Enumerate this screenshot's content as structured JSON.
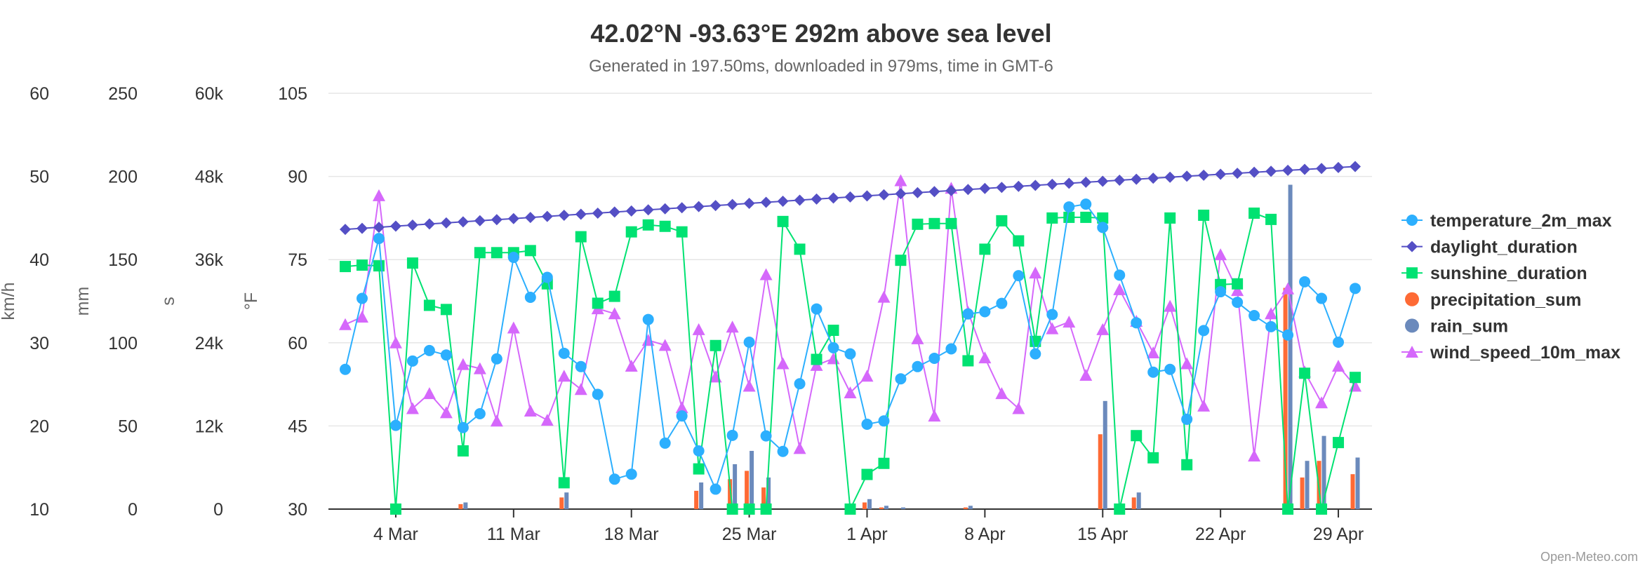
{
  "chart_data": {
    "type": "line",
    "title": "42.02°N -93.63°E 292m above sea level",
    "subtitle": "Generated in 197.50ms, downloaded in 979ms, time in GMT-6",
    "credit": "Open-Meteo.com",
    "x_tick_labels": [
      "4 Mar",
      "11 Mar",
      "18 Mar",
      "25 Mar",
      "1 Apr",
      "8 Apr",
      "15 Apr",
      "22 Apr",
      "29 Apr"
    ],
    "x_tick_dates": [
      "2024-03-04",
      "2024-03-11",
      "2024-03-18",
      "2024-03-25",
      "2024-04-01",
      "2024-04-08",
      "2024-04-15",
      "2024-04-22",
      "2024-04-29"
    ],
    "x_range": [
      "2024-02-29",
      "2024-05-01"
    ],
    "dates": [
      "2024-03-01",
      "2024-03-02",
      "2024-03-03",
      "2024-03-04",
      "2024-03-05",
      "2024-03-06",
      "2024-03-07",
      "2024-03-08",
      "2024-03-09",
      "2024-03-10",
      "2024-03-11",
      "2024-03-12",
      "2024-03-13",
      "2024-03-14",
      "2024-03-15",
      "2024-03-16",
      "2024-03-17",
      "2024-03-18",
      "2024-03-19",
      "2024-03-20",
      "2024-03-21",
      "2024-03-22",
      "2024-03-23",
      "2024-03-24",
      "2024-03-25",
      "2024-03-26",
      "2024-03-27",
      "2024-03-28",
      "2024-03-29",
      "2024-03-30",
      "2024-03-31",
      "2024-04-01",
      "2024-04-02",
      "2024-04-03",
      "2024-04-04",
      "2024-04-05",
      "2024-04-06",
      "2024-04-07",
      "2024-04-08",
      "2024-04-09",
      "2024-04-10",
      "2024-04-11",
      "2024-04-12",
      "2024-04-13",
      "2024-04-14",
      "2024-04-15",
      "2024-04-16",
      "2024-04-17",
      "2024-04-18",
      "2024-04-19",
      "2024-04-20",
      "2024-04-21",
      "2024-04-22",
      "2024-04-23",
      "2024-04-24",
      "2024-04-25",
      "2024-04-26",
      "2024-04-27",
      "2024-04-28",
      "2024-04-29",
      "2024-04-30"
    ],
    "axes": [
      {
        "id": "kmh",
        "title": "km/h",
        "ticks": [
          "10",
          "20",
          "30",
          "40",
          "50",
          "60"
        ],
        "min": 10,
        "max": 60
      },
      {
        "id": "mm",
        "title": "mm",
        "ticks": [
          "0",
          "50",
          "100",
          "150",
          "200",
          "250"
        ],
        "min": 0,
        "max": 250
      },
      {
        "id": "s",
        "title": "s",
        "ticks": [
          "0",
          "12k",
          "24k",
          "36k",
          "48k",
          "60k"
        ],
        "min": 0,
        "max": 60000
      },
      {
        "id": "f",
        "title": "°F",
        "ticks": [
          "30",
          "45",
          "60",
          "75",
          "90",
          "105"
        ],
        "min": 30,
        "max": 105
      }
    ],
    "grid": true,
    "legend_position": "right",
    "series": [
      {
        "name": "temperature_2m_max",
        "axis": "f",
        "type": "line",
        "marker": "circle",
        "color": "#2caffe",
        "values": [
          55.2,
          68.0,
          78.8,
          45.1,
          56.7,
          58.6,
          57.8,
          44.7,
          47.2,
          57.1,
          75.4,
          68.2,
          71.8,
          58.1,
          55.7,
          50.7,
          35.4,
          36.3,
          64.2,
          41.9,
          46.8,
          40.5,
          33.6,
          43.3,
          60.1,
          43.2,
          40.4,
          52.6,
          66.1,
          59.1,
          58.0,
          45.3,
          45.9,
          53.5,
          55.7,
          57.2,
          58.9,
          65.2,
          65.6,
          67.1,
          72.1,
          58.0,
          65.1,
          84.5,
          85.0,
          80.8,
          72.2,
          63.6,
          54.7,
          55.2,
          46.2,
          62.2,
          69.2,
          67.3,
          64.9,
          62.9,
          61.4,
          71.0,
          68.0,
          60.1,
          69.8
        ]
      },
      {
        "name": "daylight_duration",
        "axis": "s",
        "type": "line",
        "marker": "diamond",
        "color": "#544fc5",
        "values": [
          40356,
          40512,
          40668,
          40824,
          40981,
          41137,
          41294,
          41450,
          41607,
          41764,
          41920,
          42077,
          42234,
          42390,
          42547,
          42704,
          42860,
          43017,
          43173,
          43330,
          43486,
          43642,
          43798,
          43954,
          44110,
          44266,
          44421,
          44576,
          44731,
          44886,
          45040,
          45194,
          45348,
          45501,
          45654,
          45806,
          45958,
          46110,
          46261,
          46412,
          46562,
          46712,
          46861,
          47009,
          47157,
          47304,
          47451,
          47597,
          47742,
          47887,
          48031,
          48174,
          48316,
          48458,
          48599,
          48739,
          48878,
          49016,
          49153,
          49290,
          49425
        ]
      },
      {
        "name": "sunshine_duration",
        "axis": "s",
        "type": "line",
        "marker": "square",
        "color": "#00e272",
        "values": [
          35000,
          35200,
          35100,
          0,
          35500,
          29400,
          28800,
          8400,
          37000,
          37000,
          37000,
          37300,
          32500,
          3800,
          39300,
          29700,
          30700,
          40000,
          41000,
          40800,
          40000,
          5800,
          23600,
          0,
          0,
          0,
          41500,
          37500,
          21600,
          25800,
          0,
          5000,
          6600,
          35900,
          41100,
          41200,
          41200,
          21400,
          37500,
          41600,
          38700,
          24200,
          42000,
          42100,
          42100,
          42000,
          0,
          10600,
          7400,
          42000,
          6400,
          42400,
          32400,
          32500,
          42700,
          41800,
          0,
          19600,
          0,
          9600,
          19000
        ]
      },
      {
        "name": "precipitation_sum",
        "axis": "mm",
        "type": "column",
        "color": "#fe6a35",
        "values": [
          0,
          0,
          0,
          0,
          0,
          0,
          0,
          3,
          0,
          0,
          0,
          0,
          0,
          7,
          0,
          0,
          0,
          0,
          0,
          0,
          0,
          11,
          0,
          18,
          23,
          13,
          0,
          0,
          0,
          0,
          0,
          4,
          1,
          0,
          0,
          0,
          0,
          1,
          0,
          0,
          0,
          0,
          0,
          0,
          0,
          45,
          0,
          7,
          0,
          0,
          0,
          0,
          0,
          0,
          0,
          0,
          133,
          19,
          29,
          0,
          21
        ]
      },
      {
        "name": "rain_sum",
        "axis": "mm",
        "type": "column",
        "color": "#6b8abc",
        "values": [
          0,
          0,
          0,
          0,
          0,
          0,
          0,
          4,
          0,
          0,
          0,
          0,
          0,
          10,
          0,
          0,
          0,
          0,
          0,
          0,
          0,
          16,
          0,
          27,
          35,
          19,
          0,
          0,
          0,
          0,
          0,
          6,
          2,
          1,
          0,
          0,
          0,
          2,
          0,
          0,
          0,
          0,
          0,
          0,
          0,
          65,
          0,
          10,
          0,
          0,
          0,
          0,
          0,
          0,
          0,
          0,
          195,
          29,
          44,
          0,
          31
        ]
      },
      {
        "name": "wind_speed_10m_max",
        "axis": "kmh",
        "type": "line",
        "marker": "triangle",
        "color": "#d568fb",
        "values": [
          32.2,
          33.1,
          47.7,
          30.0,
          22.1,
          23.9,
          21.6,
          27.4,
          26.9,
          20.6,
          31.8,
          21.8,
          20.7,
          26.0,
          24.4,
          34.1,
          33.5,
          27.2,
          30.3,
          29.7,
          22.2,
          31.6,
          25.9,
          31.9,
          24.8,
          38.2,
          27.5,
          17.3,
          27.3,
          28.1,
          24.0,
          26.0,
          35.5,
          49.5,
          30.5,
          21.2,
          48.6,
          33.7,
          28.2,
          23.9,
          22.1,
          38.4,
          31.7,
          32.5,
          26.1,
          31.6,
          36.4,
          32.6,
          28.8,
          34.4,
          27.5,
          22.4,
          40.6,
          36.3,
          16.4,
          33.5,
          36.5,
          26.5,
          22.8,
          27.2,
          24.8
        ]
      }
    ]
  }
}
